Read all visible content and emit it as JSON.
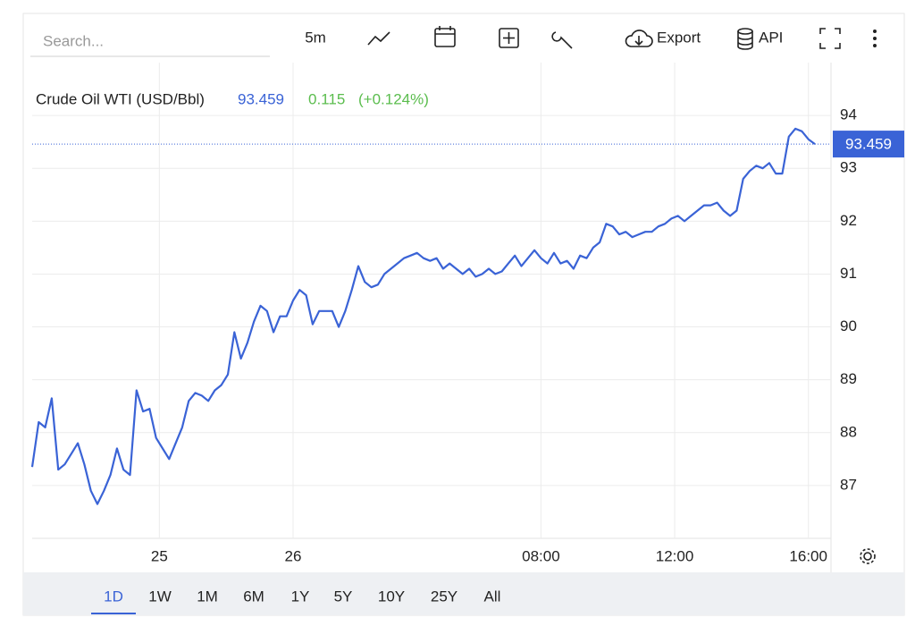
{
  "toolbar": {
    "search_placeholder": "Search...",
    "interval": "5m",
    "export": "Export",
    "api": "API"
  },
  "chart_data": {
    "type": "line",
    "title": "Crude Oil WTI (USD/Bbl)",
    "last_value": 93.459,
    "change": 0.115,
    "change_percent": {
      "value": 0.124,
      "label": "(+0.124%)"
    },
    "color": "#3a63d6",
    "change_color": "#5bbd4e",
    "grid": true,
    "values": [
      87.35,
      88.2,
      88.1,
      88.65,
      87.3,
      87.4,
      87.6,
      87.8,
      87.4,
      86.9,
      86.65,
      86.9,
      87.2,
      87.7,
      87.3,
      87.2,
      88.8,
      88.4,
      88.45,
      87.9,
      87.7,
      87.5,
      87.8,
      88.1,
      88.6,
      88.75,
      88.7,
      88.6,
      88.8,
      88.9,
      89.1,
      89.9,
      89.4,
      89.7,
      90.1,
      90.4,
      90.3,
      89.9,
      90.2,
      90.2,
      90.5,
      90.7,
      90.6,
      90.05,
      90.3,
      90.3,
      90.3,
      90.0,
      90.3,
      90.7,
      91.15,
      90.85,
      90.75,
      90.8,
      91.0,
      91.1,
      91.2,
      91.3,
      91.35,
      91.4,
      91.3,
      91.25,
      91.3,
      91.1,
      91.2,
      91.1,
      91.0,
      91.1,
      90.95,
      91.0,
      91.1,
      91.0,
      91.05,
      91.2,
      91.35,
      91.15,
      91.3,
      91.45,
      91.3,
      91.2,
      91.4,
      91.2,
      91.25,
      91.1,
      91.35,
      91.3,
      91.5,
      91.6,
      91.95,
      91.9,
      91.75,
      91.8,
      91.7,
      91.75,
      91.8,
      91.8,
      91.9,
      91.95,
      92.05,
      92.1,
      92.0,
      92.1,
      92.2,
      92.3,
      92.3,
      92.35,
      92.2,
      92.1,
      92.2,
      92.8,
      92.95,
      93.05,
      93.0,
      93.1,
      92.9,
      92.9,
      93.6,
      93.75,
      93.7,
      93.55,
      93.459
    ],
    "xlim": [
      0,
      120
    ],
    "xticks": [
      {
        "value": 19.5,
        "label": "25"
      },
      {
        "value": 40,
        "label": "26"
      },
      {
        "value": 78,
        "label": "08:00"
      },
      {
        "value": 98.5,
        "label": "12:00"
      },
      {
        "value": 119,
        "label": "16:00"
      }
    ],
    "ylim": [
      86,
      95
    ],
    "yticks": [
      87,
      88,
      89,
      90,
      91,
      92,
      93,
      94
    ]
  },
  "ranges": [
    "1D",
    "1W",
    "1M",
    "6M",
    "1Y",
    "5Y",
    "10Y",
    "25Y",
    "All"
  ],
  "active_range": 0
}
